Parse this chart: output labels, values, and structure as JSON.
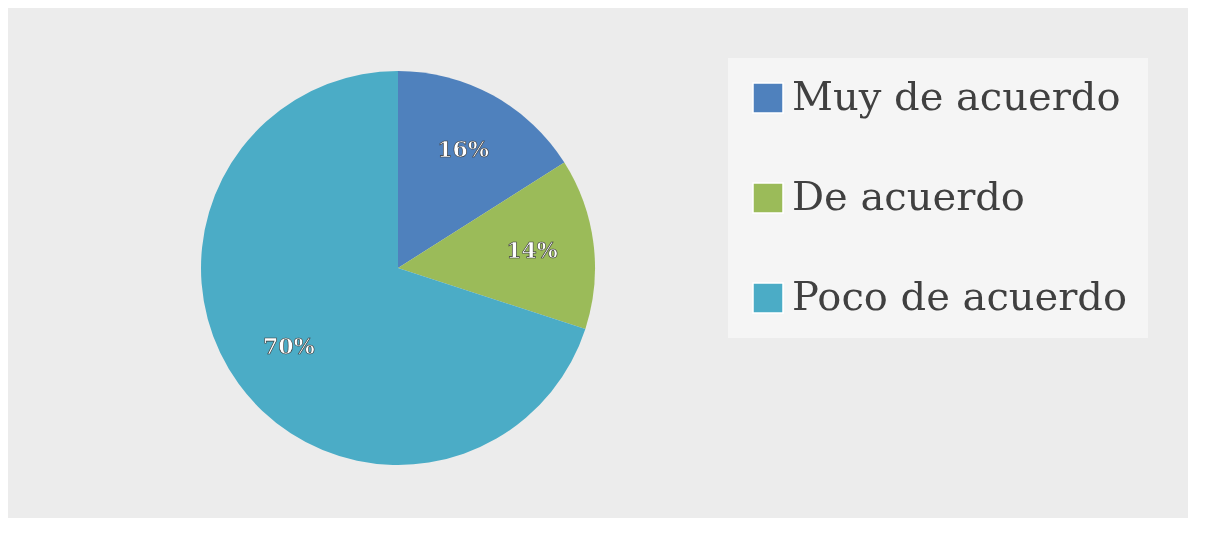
{
  "chart_data": {
    "type": "pie",
    "categories": [
      "Muy de acuerdo",
      "De acuerdo",
      "Poco de acuerdo"
    ],
    "values": [
      16,
      14,
      70
    ],
    "colors": [
      "#4f81bd",
      "#9bbb59",
      "#4bacc6"
    ],
    "value_labels": [
      "16%",
      "14%",
      "70%"
    ],
    "legend": "right"
  }
}
